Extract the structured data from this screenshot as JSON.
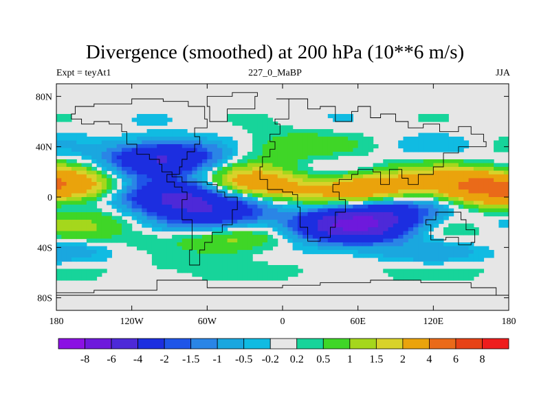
{
  "header": {
    "title": "Divergence (smoothed) at 200 hPa (10**6 m/s)",
    "left_string": "Expt = teyAt1",
    "center_string": "227_0_MaBP",
    "right_string": "JJA"
  },
  "chart_data": {
    "type": "heatmap",
    "title": "Divergence (smoothed) at 200 hPa (10**6 m/s)",
    "subtitle": "227_0_MaBP",
    "xlabel": "",
    "ylabel": "",
    "xlim": [
      -180,
      180
    ],
    "ylim": [
      -90,
      90
    ],
    "x_ticks": [
      {
        "value": -180,
        "label": "180"
      },
      {
        "value": -120,
        "label": "120W"
      },
      {
        "value": -60,
        "label": "60W"
      },
      {
        "value": 0,
        "label": "0"
      },
      {
        "value": 60,
        "label": "60E"
      },
      {
        "value": 120,
        "label": "120E"
      },
      {
        "value": 180,
        "label": "180"
      }
    ],
    "y_ticks": [
      {
        "value": 80,
        "label": "80N"
      },
      {
        "value": 40,
        "label": "40N"
      },
      {
        "value": 0,
        "label": "0"
      },
      {
        "value": -40,
        "label": "40S"
      },
      {
        "value": -80,
        "label": "80S"
      }
    ],
    "colorbar": {
      "orientation": "horizontal",
      "levels": [
        "-8",
        "-6",
        "-4",
        "-2",
        "-1.5",
        "-1",
        "-0.5",
        "-0.2",
        "0.2",
        "0.5",
        "1",
        "1.5",
        "2",
        "4",
        "6",
        "8"
      ],
      "colors": [
        "#8b11e3",
        "#6e19dc",
        "#4d29d8",
        "#1c2ee0",
        "#1f55e8",
        "#2a85e6",
        "#1aa7df",
        "#10bbe2",
        "#e6e6e6",
        "#17d49a",
        "#3fd627",
        "#a5d71c",
        "#d8d22a",
        "#eaa30c",
        "#ea6a19",
        "#e74216",
        "#ee1d1d"
      ]
    },
    "field_features": [
      {
        "lon": -90,
        "lat": 0,
        "value": -5,
        "note": "tropical convergence band over eastern Pacific"
      },
      {
        "lon": -50,
        "lat": -14,
        "value": -3
      },
      {
        "lon": 55,
        "lat": -24,
        "value": -5,
        "note": "convergence over Indian Ocean"
      },
      {
        "lon": 80,
        "lat": -14,
        "value": -3
      },
      {
        "lon": 70,
        "lat": 8,
        "value": 3,
        "note": "divergence over South Asia"
      },
      {
        "lon": 155,
        "lat": 8,
        "value": 4,
        "note": "divergence over western Pacific"
      },
      {
        "lon": -20,
        "lat": 8,
        "value": 3
      },
      {
        "lon": -165,
        "lat": 8,
        "value": 2
      },
      {
        "lon": -95,
        "lat": 32,
        "value": -4
      },
      {
        "lon": -130,
        "lat": -20,
        "value": 1
      },
      {
        "lon": -40,
        "lat": -40,
        "value": 1.5
      },
      {
        "lon": -5,
        "lat": 40,
        "value": 1
      }
    ]
  }
}
